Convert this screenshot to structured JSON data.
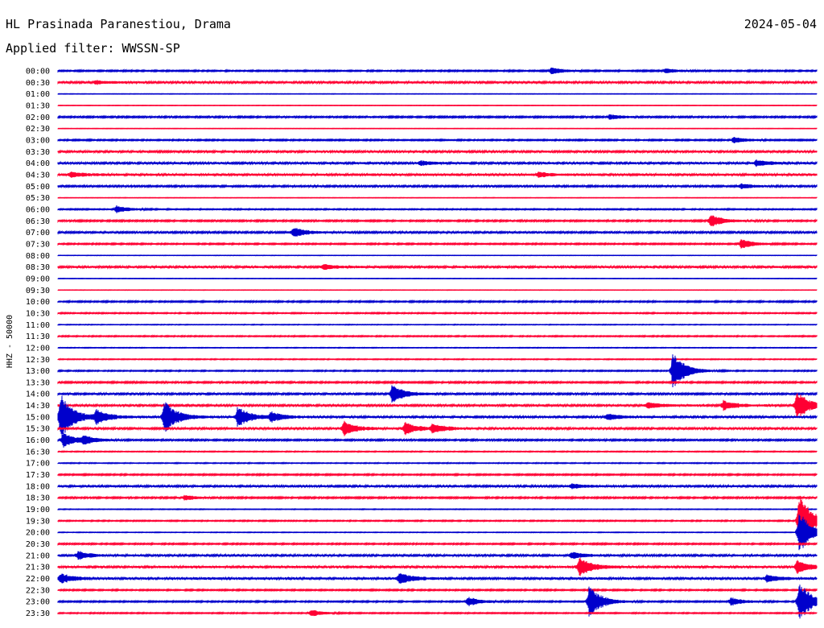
{
  "header": {
    "station": "HL Prasinada Paranestiou, Drama",
    "date": "2024-05-04",
    "filter": "Applied filter: WWSSN-SP"
  },
  "chart_data": {
    "type": "line",
    "title": "HL Prasinada Paranestiou, Drama",
    "ylabel": "HHZ - 50000",
    "row_labels": [
      "00:00",
      "00:30",
      "01:00",
      "01:30",
      "02:00",
      "02:30",
      "03:00",
      "03:30",
      "04:00",
      "04:30",
      "05:00",
      "05:30",
      "06:00",
      "06:30",
      "07:00",
      "07:30",
      "08:00",
      "08:30",
      "09:00",
      "09:30",
      "10:00",
      "10:30",
      "11:00",
      "11:30",
      "12:00",
      "12:30",
      "13:00",
      "13:30",
      "14:00",
      "14:30",
      "15:00",
      "15:30",
      "16:00",
      "16:30",
      "17:00",
      "17:30",
      "18:00",
      "18:30",
      "19:00",
      "19:30",
      "20:00",
      "20:30",
      "21:00",
      "21:30",
      "22:00",
      "22:30",
      "23:00",
      "23:30"
    ],
    "x_range_minutes": [
      0,
      30
    ],
    "colors": [
      "#0000cc",
      "#ff0033"
    ],
    "noise_levels": [
      0.6,
      0.9,
      0.2,
      0.2,
      0.7,
      0.2,
      0.6,
      0.9,
      0.9,
      1.0,
      0.8,
      0.2,
      0.5,
      0.7,
      0.8,
      0.6,
      0.2,
      0.9,
      0.2,
      0.2,
      0.6,
      0.5,
      0.3,
      0.5,
      0.3,
      0.4,
      0.5,
      0.7,
      0.8,
      0.9,
      0.9,
      0.9,
      0.7,
      0.4,
      0.4,
      0.6,
      0.9,
      0.7,
      0.3,
      0.5,
      0.3,
      0.6,
      0.9,
      1.0,
      1.0,
      0.6,
      0.6,
      0.5
    ],
    "events": [
      {
        "row": 0,
        "minute": 19.5,
        "amp": 4
      },
      {
        "row": 0,
        "minute": 24.0,
        "amp": 3
      },
      {
        "row": 1,
        "minute": 1.5,
        "amp": 2
      },
      {
        "row": 4,
        "minute": 21.8,
        "amp": 3
      },
      {
        "row": 6,
        "minute": 26.7,
        "amp": 4
      },
      {
        "row": 8,
        "minute": 14.3,
        "amp": 3
      },
      {
        "row": 8,
        "minute": 27.6,
        "amp": 4
      },
      {
        "row": 9,
        "minute": 0.5,
        "amp": 3
      },
      {
        "row": 9,
        "minute": 19.0,
        "amp": 3
      },
      {
        "row": 10,
        "minute": 27.0,
        "amp": 3
      },
      {
        "row": 12,
        "minute": 2.3,
        "amp": 5
      },
      {
        "row": 13,
        "minute": 25.8,
        "amp": 8
      },
      {
        "row": 14,
        "minute": 9.3,
        "amp": 6
      },
      {
        "row": 15,
        "minute": 27.0,
        "amp": 6
      },
      {
        "row": 17,
        "minute": 10.5,
        "amp": 3
      },
      {
        "row": 26,
        "minute": 24.3,
        "amp": 24
      },
      {
        "row": 28,
        "minute": 13.2,
        "amp": 12
      },
      {
        "row": 29,
        "minute": 23.3,
        "amp": 4
      },
      {
        "row": 29,
        "minute": 26.3,
        "amp": 6
      },
      {
        "row": 29,
        "minute": 29.2,
        "amp": 18
      },
      {
        "row": 30,
        "minute": 0.1,
        "amp": 30
      },
      {
        "row": 30,
        "minute": 1.5,
        "amp": 9
      },
      {
        "row": 30,
        "minute": 4.2,
        "amp": 21
      },
      {
        "row": 30,
        "minute": 7.1,
        "amp": 13
      },
      {
        "row": 30,
        "minute": 8.4,
        "amp": 6
      },
      {
        "row": 30,
        "minute": 21.7,
        "amp": 4
      },
      {
        "row": 31,
        "minute": 11.3,
        "amp": 9
      },
      {
        "row": 31,
        "minute": 13.7,
        "amp": 8
      },
      {
        "row": 31,
        "minute": 14.8,
        "amp": 6
      },
      {
        "row": 32,
        "minute": 0.2,
        "amp": 9
      },
      {
        "row": 32,
        "minute": 1.0,
        "amp": 5
      },
      {
        "row": 36,
        "minute": 20.3,
        "amp": 3
      },
      {
        "row": 37,
        "minute": 5.0,
        "amp": 3
      },
      {
        "row": 39,
        "minute": 29.3,
        "amp": 36
      },
      {
        "row": 40,
        "minute": 29.3,
        "amp": 28
      },
      {
        "row": 42,
        "minute": 0.8,
        "amp": 5
      },
      {
        "row": 42,
        "minute": 20.3,
        "amp": 4
      },
      {
        "row": 43,
        "minute": 20.6,
        "amp": 12
      },
      {
        "row": 43,
        "minute": 29.2,
        "amp": 8
      },
      {
        "row": 44,
        "minute": 0.1,
        "amp": 6
      },
      {
        "row": 44,
        "minute": 13.5,
        "amp": 7
      },
      {
        "row": 44,
        "minute": 28.0,
        "amp": 4
      },
      {
        "row": 46,
        "minute": 16.2,
        "amp": 6
      },
      {
        "row": 46,
        "minute": 21.0,
        "amp": 20
      },
      {
        "row": 46,
        "minute": 26.6,
        "amp": 5
      },
      {
        "row": 46,
        "minute": 29.3,
        "amp": 26
      },
      {
        "row": 47,
        "minute": 10.0,
        "amp": 4
      }
    ]
  }
}
